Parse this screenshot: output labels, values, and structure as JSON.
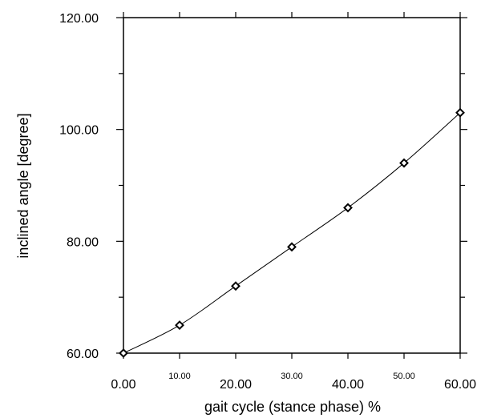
{
  "chart_data": {
    "type": "line",
    "xlabel": "gait cycle (stance phase) %",
    "ylabel": "inclined angle [degree]",
    "xlim": [
      0,
      60
    ],
    "ylim": [
      60,
      120
    ],
    "grid": false,
    "x_ticks": [
      {
        "value": 0,
        "label": "0.00",
        "size": "large"
      },
      {
        "value": 10,
        "label": "10.00",
        "size": "small"
      },
      {
        "value": 20,
        "label": "20.00",
        "size": "large"
      },
      {
        "value": 30,
        "label": "30.00",
        "size": "small"
      },
      {
        "value": 40,
        "label": "40.00",
        "size": "large"
      },
      {
        "value": 50,
        "label": "50.00",
        "size": "small"
      },
      {
        "value": 60,
        "label": "60.00",
        "size": "large"
      }
    ],
    "y_ticks": [
      {
        "value": 60,
        "label": "60.00"
      },
      {
        "value": 80,
        "label": "80.00"
      },
      {
        "value": 100,
        "label": "100.00"
      },
      {
        "value": 120,
        "label": "120.00"
      }
    ],
    "series": [
      {
        "marker": "diamond",
        "color": "#000000",
        "x": [
          0,
          10,
          20,
          30,
          40,
          50,
          60
        ],
        "y": [
          60,
          65,
          72,
          79,
          86,
          94,
          103
        ]
      }
    ]
  }
}
